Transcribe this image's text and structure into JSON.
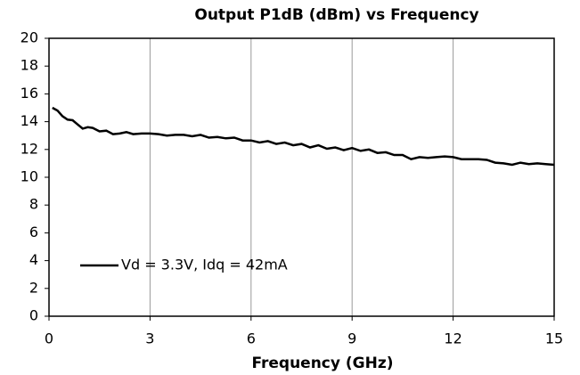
{
  "chart_data": {
    "type": "line",
    "title": "Output P1dB (dBm) vs Frequency",
    "x_label": "Frequency (GHz)",
    "xlim": [
      0,
      15
    ],
    "xticks": [
      0,
      3,
      6,
      9,
      12,
      15
    ],
    "ylim": [
      0,
      20
    ],
    "yticks": [
      0,
      2,
      4,
      6,
      8,
      10,
      12,
      14,
      16,
      18,
      20
    ],
    "grid": "x",
    "legend": "lower left",
    "x": [
      0.1,
      0.25,
      0.4,
      0.55,
      0.7,
      0.85,
      1.0,
      1.15,
      1.3,
      1.5,
      1.7,
      1.9,
      2.1,
      2.3,
      2.5,
      2.75,
      3.0,
      3.25,
      3.5,
      3.75,
      4.0,
      4.25,
      4.5,
      4.75,
      5.0,
      5.25,
      5.5,
      5.75,
      6.0,
      6.25,
      6.5,
      6.75,
      7.0,
      7.25,
      7.5,
      7.75,
      8.0,
      8.25,
      8.5,
      8.75,
      9.0,
      9.25,
      9.5,
      9.75,
      10.0,
      10.25,
      10.5,
      10.75,
      11.0,
      11.25,
      11.5,
      11.75,
      12.0,
      12.25,
      12.5,
      12.75,
      13.0,
      13.25,
      13.5,
      13.75,
      14.0,
      14.25,
      14.5,
      14.75,
      15.0
    ],
    "series": [
      {
        "name": "Vd = 3.3V, Idq = 42mA",
        "color": "#000000",
        "values": [
          15.0,
          14.8,
          14.4,
          14.15,
          14.1,
          13.8,
          13.5,
          13.6,
          13.55,
          13.3,
          13.35,
          13.1,
          13.15,
          13.25,
          13.1,
          13.15,
          13.15,
          13.1,
          13.0,
          13.05,
          13.05,
          12.95,
          13.05,
          12.85,
          12.9,
          12.8,
          12.85,
          12.65,
          12.65,
          12.5,
          12.6,
          12.4,
          12.5,
          12.3,
          12.4,
          12.15,
          12.3,
          12.05,
          12.15,
          11.95,
          12.1,
          11.9,
          12.0,
          11.75,
          11.8,
          11.6,
          11.6,
          11.3,
          11.45,
          11.4,
          11.45,
          11.5,
          11.45,
          11.3,
          11.3,
          11.3,
          11.25,
          11.05,
          11.0,
          10.9,
          11.05,
          10.95,
          11.0,
          10.95,
          10.9
        ]
      }
    ]
  }
}
